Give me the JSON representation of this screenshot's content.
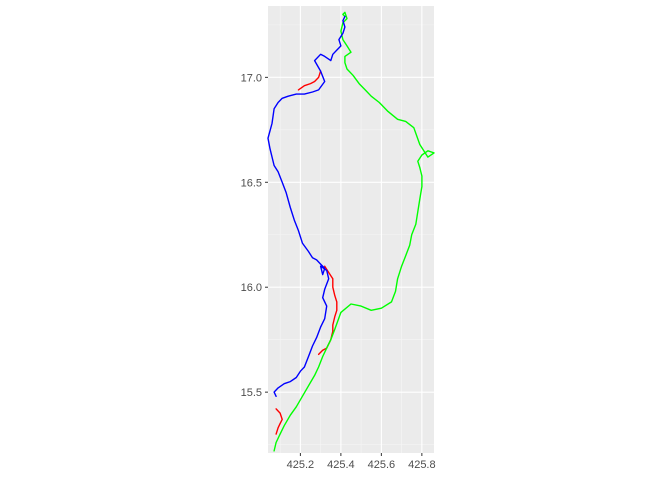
{
  "chart_data": {
    "type": "line",
    "title": "",
    "xlabel": "",
    "ylabel": "",
    "xlim": [
      425.04,
      425.86
    ],
    "ylim": [
      15.21,
      17.34
    ],
    "x_ticks": [
      425.2,
      425.4,
      425.6,
      425.8
    ],
    "x_tick_labels": [
      "425.2",
      "425.4",
      "425.6",
      "425.8"
    ],
    "y_ticks": [
      15.5,
      16.0,
      16.5,
      17.0
    ],
    "y_tick_labels": [
      "15.5",
      "16.0",
      "16.5",
      "17.0"
    ],
    "grid": true,
    "legend": "none",
    "colors": {
      "panel_background": "#ebebeb",
      "grid_major": "#ffffff",
      "axis_text": "#4d4d4d"
    },
    "series": [
      {
        "color": "#ff0000",
        "x": [
          425.3,
          425.29,
          425.27,
          425.25,
          425.22,
          425.19
        ],
        "y": [
          17.03,
          17.0,
          16.98,
          16.97,
          16.96,
          16.94
        ]
      },
      {
        "color": "#ff0000",
        "x": [
          425.32,
          425.34,
          425.36,
          425.36,
          425.37,
          425.38,
          425.38,
          425.37,
          425.36,
          425.36,
          425.35,
          425.33,
          425.31,
          425.29
        ],
        "y": [
          16.1,
          16.07,
          16.04,
          16.0,
          15.96,
          15.93,
          15.89,
          15.86,
          15.82,
          15.79,
          15.75,
          15.71,
          15.7,
          15.68
        ]
      },
      {
        "color": "#ff0000",
        "x": [
          425.08,
          425.1,
          425.11,
          425.1,
          425.09,
          425.08
        ],
        "y": [
          15.42,
          15.4,
          15.37,
          15.35,
          15.33,
          15.3
        ]
      },
      {
        "color": "#00ff00",
        "x": [
          425.07,
          425.08,
          425.1,
          425.12,
          425.15,
          425.18,
          425.21,
          425.24,
          425.27,
          425.29,
          425.31,
          425.33,
          425.35,
          425.37,
          425.4,
          425.45,
          425.5,
          425.55,
          425.6,
          425.65,
          425.67,
          425.68,
          425.7,
          425.72,
          425.74,
          425.75,
          425.77,
          425.78,
          425.79,
          425.8,
          425.8,
          425.79,
          425.78,
          425.8,
          425.83,
          425.86,
          425.83,
          425.79,
          425.76,
          425.72,
          425.68,
          425.63,
          425.59,
          425.55,
          425.52,
          425.49,
          425.46,
          425.43,
          425.42,
          425.42,
          425.45,
          425.43,
          425.41,
          425.4,
          425.41,
          425.43,
          425.42,
          425.41,
          425.42
        ],
        "y": [
          15.22,
          15.26,
          15.3,
          15.34,
          15.39,
          15.43,
          15.48,
          15.53,
          15.58,
          15.62,
          15.67,
          15.71,
          15.75,
          15.8,
          15.88,
          15.92,
          15.91,
          15.89,
          15.9,
          15.93,
          15.98,
          16.04,
          16.1,
          16.15,
          16.2,
          16.25,
          16.3,
          16.36,
          16.42,
          16.48,
          16.53,
          16.57,
          16.6,
          16.63,
          16.65,
          16.64,
          16.62,
          16.68,
          16.76,
          16.79,
          16.8,
          16.84,
          16.88,
          16.91,
          16.94,
          16.97,
          17.01,
          17.04,
          17.07,
          17.1,
          17.12,
          17.15,
          17.18,
          17.22,
          17.26,
          17.28,
          17.31,
          17.3,
          17.29
        ]
      },
      {
        "color": "#0000ff",
        "x": [
          425.42,
          425.41,
          425.42,
          425.41,
          425.39,
          425.4,
          425.38,
          425.36,
          425.35,
          425.32,
          425.3,
          425.27,
          425.3,
          425.32,
          425.29,
          425.26,
          425.22,
          425.18,
          425.14,
          425.11,
          425.09,
          425.07,
          425.06,
          425.04,
          425.05,
          425.07,
          425.09,
          425.11,
          425.13,
          425.15,
          425.17,
          425.19,
          425.21,
          425.24,
          425.26,
          425.28,
          425.3,
          425.32,
          425.31,
          425.3,
          425.33,
          425.34,
          425.32,
          425.31,
          425.33,
          425.32,
          425.3,
          425.28,
          425.26,
          425.24,
          425.22,
          425.2,
          425.18,
          425.15,
          425.12,
          425.09,
          425.07,
          425.08
        ],
        "y": [
          17.29,
          17.27,
          17.24,
          17.21,
          17.18,
          17.15,
          17.13,
          17.11,
          17.08,
          17.1,
          17.11,
          17.08,
          17.03,
          16.98,
          16.94,
          16.93,
          16.92,
          16.92,
          16.91,
          16.9,
          16.88,
          16.85,
          16.78,
          16.71,
          16.66,
          16.58,
          16.55,
          16.5,
          16.45,
          16.38,
          16.32,
          16.27,
          16.21,
          16.17,
          16.14,
          16.13,
          16.11,
          16.09,
          16.06,
          16.1,
          16.08,
          16.04,
          15.99,
          15.95,
          15.91,
          15.85,
          15.81,
          15.76,
          15.72,
          15.67,
          15.62,
          15.6,
          15.57,
          15.55,
          15.54,
          15.52,
          15.5,
          15.48
        ]
      }
    ]
  }
}
